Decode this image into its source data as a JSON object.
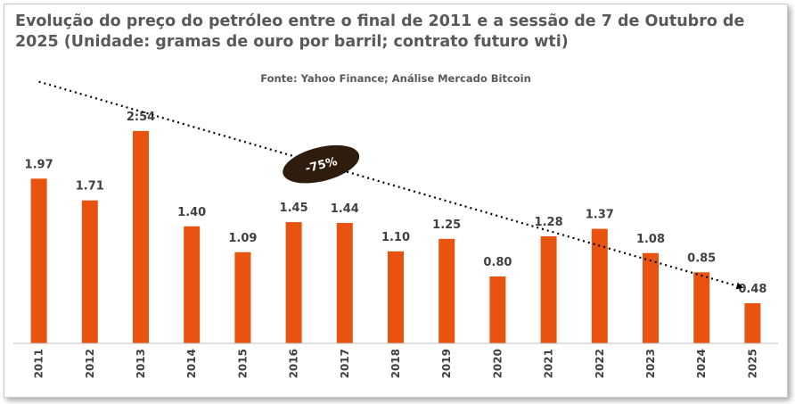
{
  "chart_data": {
    "type": "bar",
    "title": "Evolução do preço do petróleo entre o final de 2011 e a sessão de 7 de Outubro de 2025 (Unidade: gramas de ouro por barril; contrato futuro wti)",
    "subtitle": "Fonte: Yahoo Finance; Análise Mercado Bitcoin",
    "categories": [
      "2011",
      "2012",
      "2013",
      "2014",
      "2015",
      "2016",
      "2017",
      "2018",
      "2019",
      "2020",
      "2021",
      "2022",
      "2023",
      "2024",
      "2025"
    ],
    "values": [
      1.97,
      1.71,
      2.54,
      1.4,
      1.09,
      1.45,
      1.44,
      1.1,
      1.25,
      0.8,
      1.28,
      1.37,
      1.08,
      0.85,
      0.48
    ],
    "value_labels": [
      "1.97",
      "1.71",
      "2:54",
      "1.40",
      "1.09",
      "1.45",
      "1.44",
      "1.10",
      "1.25",
      "0.80",
      "1.28",
      "1.37",
      "1.08",
      "0.85",
      "0.48"
    ],
    "ylim": [
      0,
      3.2
    ],
    "xlabel": "",
    "ylabel": "",
    "grid": false,
    "trendline": {
      "style": "dotted-arrow",
      "start_value": 3.13,
      "end_value": 0.67
    },
    "annotation": "-75%",
    "colors": {
      "bar": "#e8540f",
      "text": "#404040",
      "title": "#595959",
      "annotation_bg": "#2e1d0c",
      "trend": "#000000"
    }
  }
}
